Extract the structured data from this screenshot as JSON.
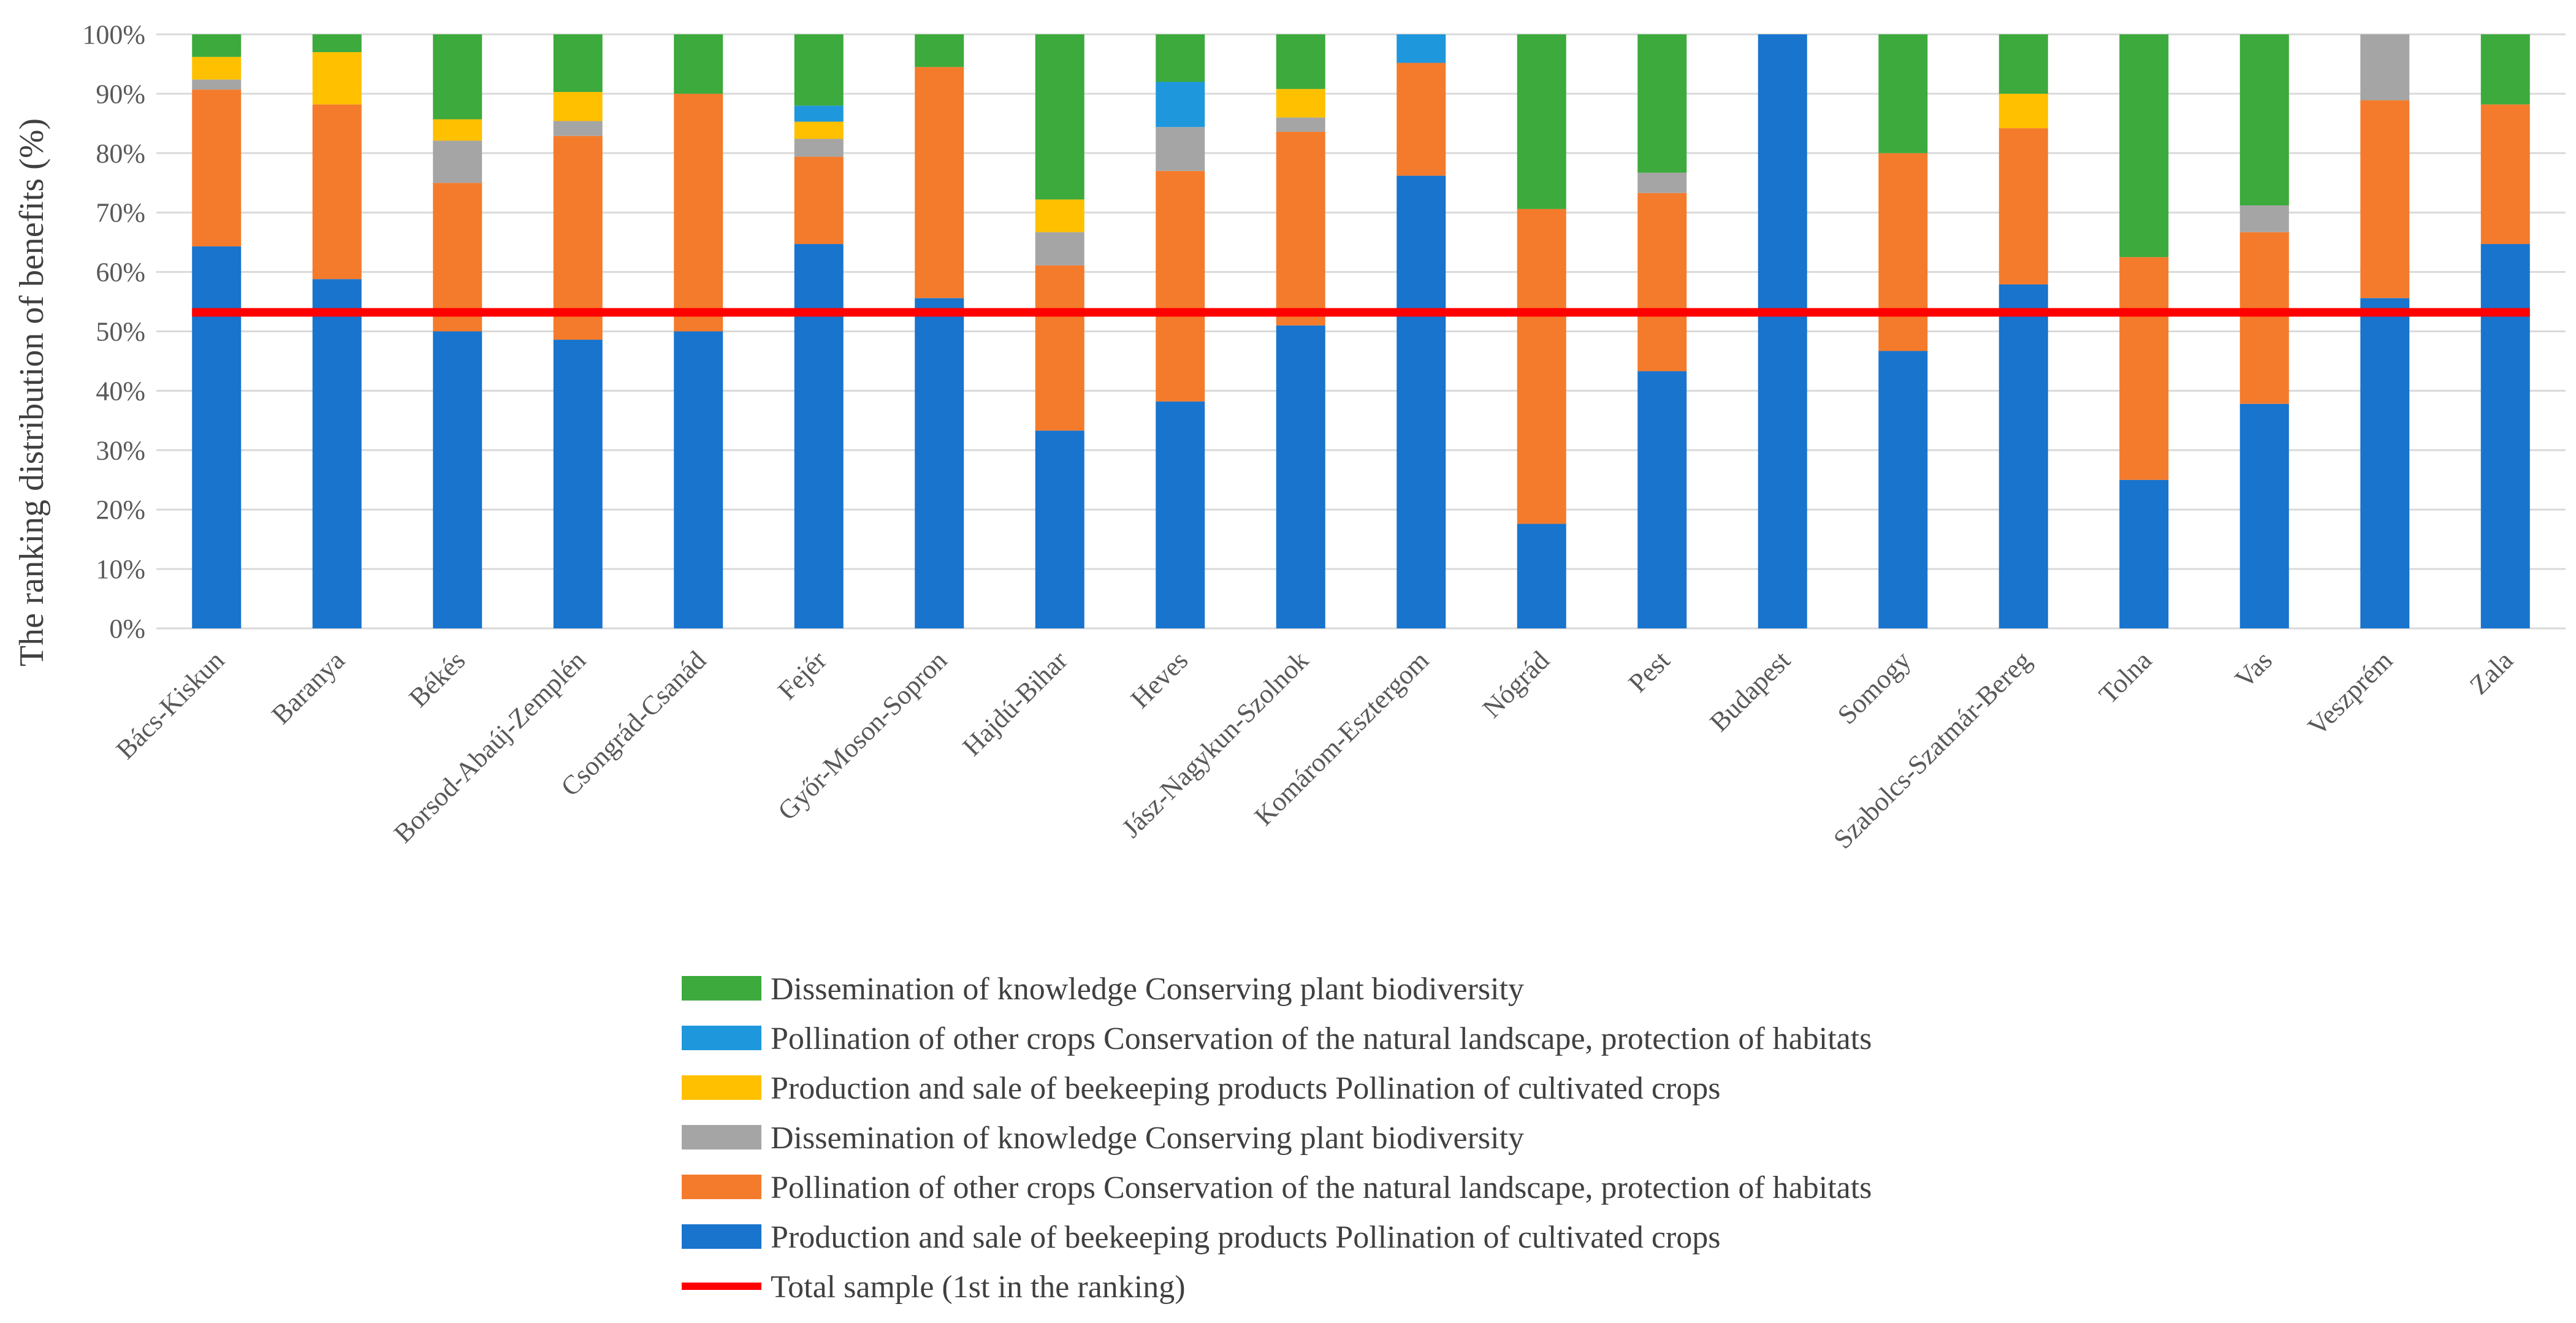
{
  "chart_data": {
    "type": "bar",
    "stacked": true,
    "ylabel": "The ranking distribution of benefits (%)",
    "xlabel": "",
    "ylim": [
      0,
      100
    ],
    "yticks": [
      0,
      10,
      20,
      30,
      40,
      50,
      60,
      70,
      80,
      90,
      100
    ],
    "ytick_labels": [
      "0%",
      "10%",
      "20%",
      "30%",
      "40%",
      "50%",
      "60%",
      "70%",
      "80%",
      "90%",
      "100%"
    ],
    "grid": true,
    "legend_position": "bottom",
    "categories": [
      "Bács-Kiskun",
      "Baranya",
      "Békés",
      "Borsod-Abaúj-Zemplén",
      "Csongrád-Csanád",
      "Fejér",
      "Győr-Moson-Sopron",
      "Hajdú-Bihar",
      "Heves",
      "Jász-Nagykun-Szolnok",
      "Komárom-Esztergom",
      "Nógrád",
      "Pest",
      "Budapest",
      "Somogy",
      "Szabolcs-Szatmár-Bereg",
      "Tolna",
      "Vas",
      "Veszprém",
      "Zala"
    ],
    "series": [
      {
        "name": "Production and sale of beekeeping products Pollination of cultivated crops",
        "color": "#1874cd",
        "values": [
          64.3,
          58.8,
          50.0,
          48.6,
          50.0,
          64.7,
          55.6,
          33.3,
          38.2,
          51.0,
          76.2,
          17.6,
          43.3,
          100.0,
          46.7,
          57.9,
          25.0,
          37.8,
          55.6,
          64.7
        ]
      },
      {
        "name": "Pollination of other crops Conservation of the natural landscape, protection of habitats",
        "color": "#f47b2b",
        "values": [
          26.4,
          29.4,
          25.0,
          34.3,
          40.0,
          14.7,
          38.9,
          27.8,
          38.8,
          32.6,
          19.0,
          53.0,
          30.0,
          0.0,
          33.3,
          26.3,
          37.5,
          28.9,
          33.3,
          23.5
        ]
      },
      {
        "name": "Dissemination of knowledge Conserving plant biodiversity",
        "color": "#a5a5a5",
        "values": [
          1.7,
          0.0,
          7.1,
          2.5,
          0.0,
          3.0,
          0.0,
          5.6,
          7.4,
          2.4,
          0.0,
          0.0,
          3.4,
          0.0,
          0.0,
          0.0,
          0.0,
          4.5,
          11.1,
          0.0
        ]
      },
      {
        "name": "Production and sale of beekeeping products Pollination of cultivated crops",
        "color": "#ffc000",
        "values": [
          3.8,
          8.8,
          3.6,
          4.9,
          0.0,
          2.9,
          0.0,
          5.5,
          0.0,
          4.8,
          0.0,
          0.0,
          0.0,
          0.0,
          0.0,
          5.8,
          0.0,
          0.0,
          0.0,
          0.0
        ]
      },
      {
        "name": "Pollination of other crops Conservation of the natural landscape, protection of habitats",
        "color": "#1f97dc",
        "values": [
          0.0,
          0.0,
          0.0,
          0.0,
          0.0,
          2.7,
          0.0,
          0.0,
          7.6,
          0.0,
          4.8,
          0.0,
          0.0,
          0.0,
          0.0,
          0.0,
          0.0,
          0.0,
          0.0,
          0.0
        ]
      },
      {
        "name": "Dissemination of knowledge Conserving plant biodiversity",
        "color": "#3caa3c",
        "values": [
          3.8,
          3.0,
          14.3,
          9.7,
          10.0,
          12.0,
          5.5,
          27.8,
          8.0,
          9.2,
          0.0,
          29.4,
          23.3,
          0.0,
          20.0,
          10.0,
          37.5,
          28.8,
          0.0,
          11.8
        ]
      }
    ],
    "reference_line": {
      "name": "Total sample (1st in the ranking)",
      "value": 53.2,
      "color": "#ff0000"
    },
    "legend_order": [
      5,
      4,
      3,
      2,
      1,
      0
    ]
  }
}
